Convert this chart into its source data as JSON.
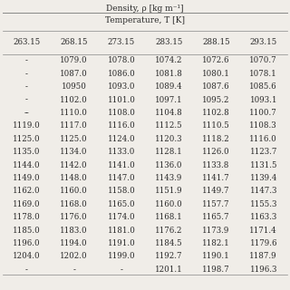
{
  "title_top": "Density, ρ [kg m⁻¹]",
  "title_sub": "Temperature, T [K]",
  "col_headers": [
    "263.15",
    "268.15",
    "273.15",
    "283.15",
    "288.15",
    "293.15"
  ],
  "rows": [
    [
      "-",
      "1079.0",
      "1078.0",
      "1074.2",
      "1072.6",
      "1070.7"
    ],
    [
      "-",
      "1087.0",
      "1086.0",
      "1081.8",
      "1080.1",
      "1078.1"
    ],
    [
      "-",
      "10950",
      "1093.0",
      "1089.4",
      "1087.6",
      "1085.6"
    ],
    [
      "-",
      "1102.0",
      "1101.0",
      "1097.1",
      "1095.2",
      "1093.1"
    ],
    [
      "--",
      "1110.0",
      "1108.0",
      "1104.8",
      "1102.8",
      "1100.7"
    ],
    [
      "1119.0",
      "1117.0",
      "1116.0",
      "1112.5",
      "1110.5",
      "1108.3"
    ],
    [
      "1125.0",
      "1125.0",
      "1124.0",
      "1120.3",
      "1118.2",
      "1116.0"
    ],
    [
      "1135.0",
      "1134.0",
      "1133.0",
      "1128.1",
      "1126.0",
      "1123.7"
    ],
    [
      "1144.0",
      "1142.0",
      "1141.0",
      "1136.0",
      "1133.8",
      "1131.5"
    ],
    [
      "1149.0",
      "1148.0",
      "1147.0",
      "1143.9",
      "1141.7",
      "1139.4"
    ],
    [
      "1162.0",
      "1160.0",
      "1158.0",
      "1151.9",
      "1149.7",
      "1147.3"
    ],
    [
      "1169.0",
      "1168.0",
      "1165.0",
      "1160.0",
      "1157.7",
      "1155.3"
    ],
    [
      "1178.0",
      "1176.0",
      "1174.0",
      "1168.1",
      "1165.7",
      "1163.3"
    ],
    [
      "1185.0",
      "1183.0",
      "1181.0",
      "1176.2",
      "1173.9",
      "1171.4"
    ],
    [
      "1196.0",
      "1194.0",
      "1191.0",
      "1184.5",
      "1182.1",
      "1179.6"
    ],
    [
      "1204.0",
      "1202.0",
      "1199.0",
      "1192.7",
      "1190.1",
      "1187.9"
    ],
    [
      "-",
      "-",
      "-",
      "1201.1",
      "1198.7",
      "1196.3"
    ]
  ],
  "bg_color": "#f0ede8",
  "text_color": "#2a2a2a",
  "font_size": 6.2,
  "header_font_size": 6.5,
  "line_color": "#888888"
}
